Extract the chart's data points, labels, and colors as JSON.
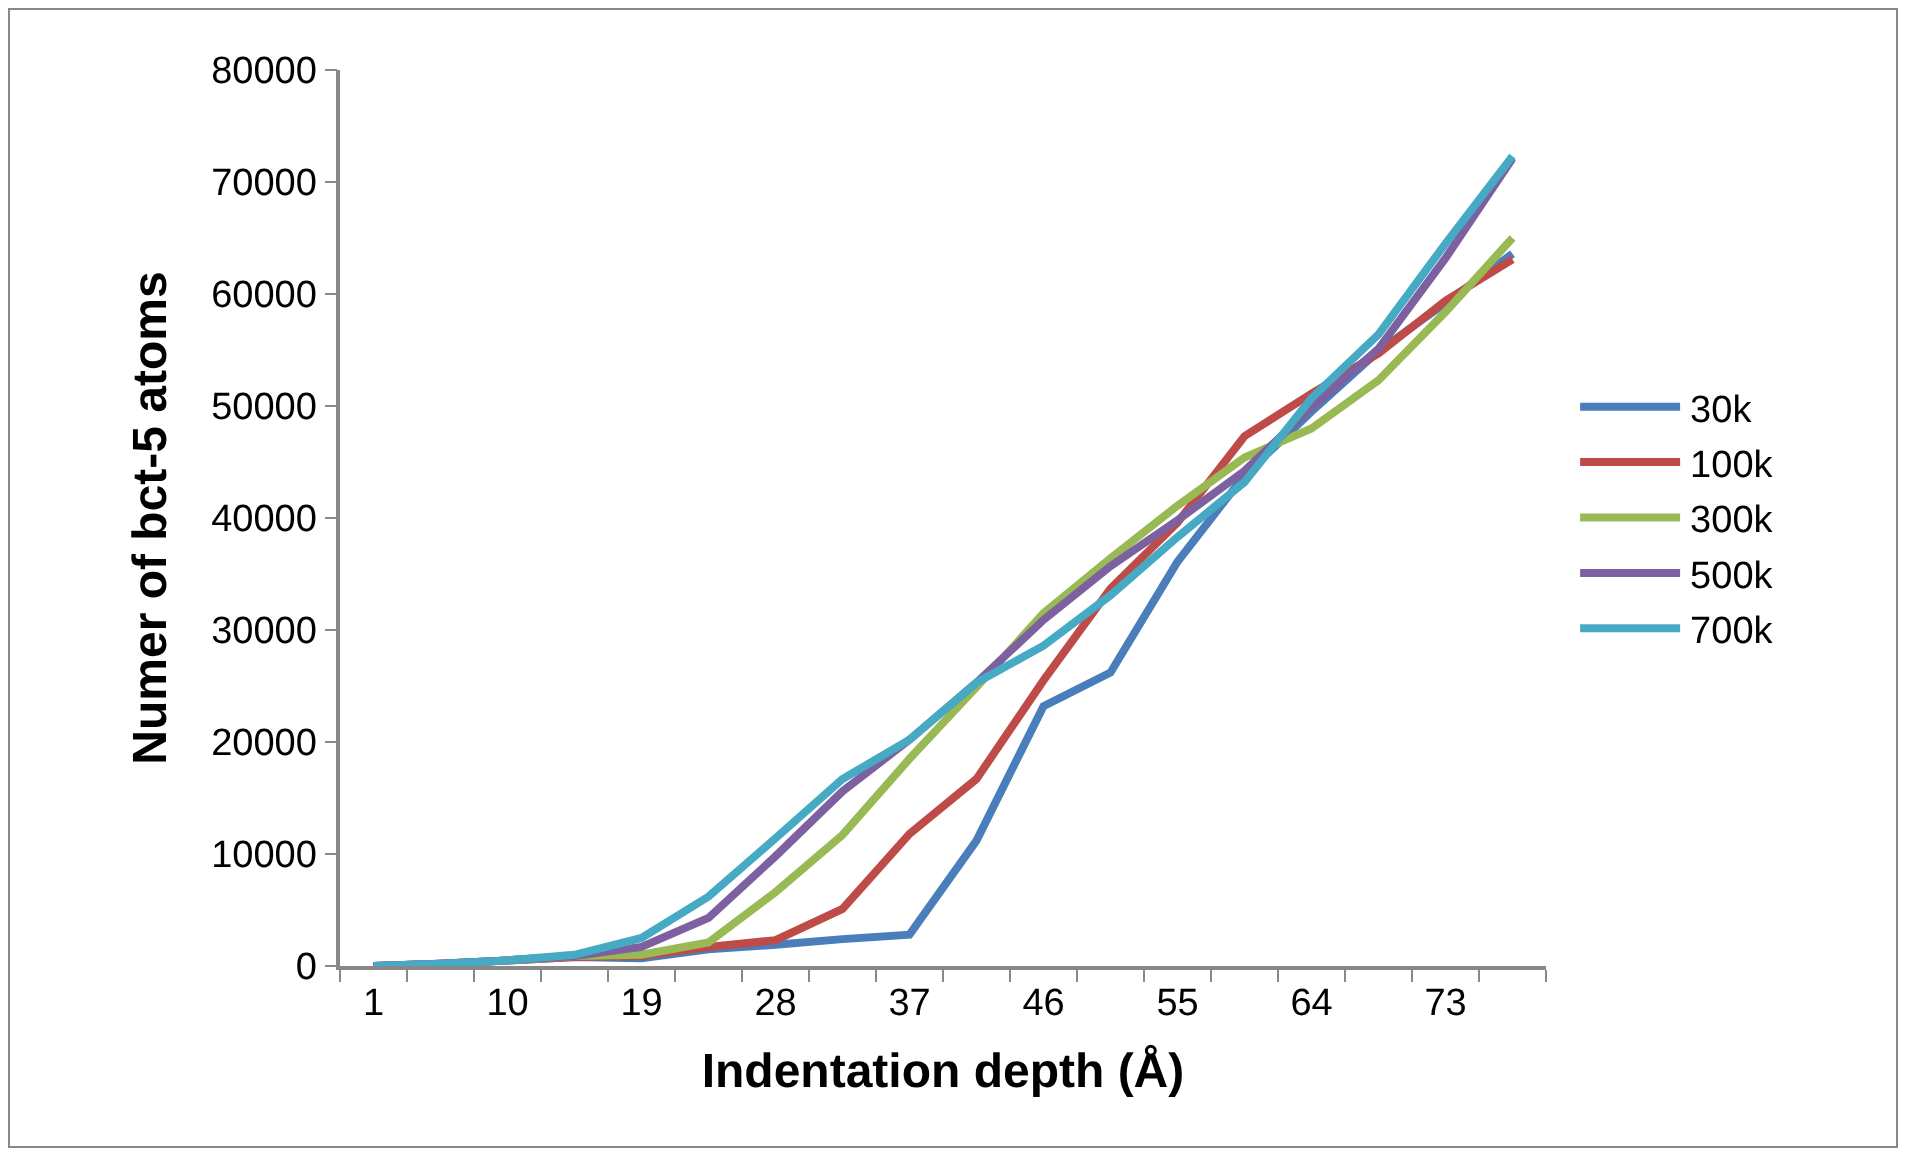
{
  "chart_data": {
    "type": "line",
    "xlabel": "Indentation depth (Å)",
    "ylabel": "Numer of bct-5 atoms",
    "categories": [
      "1",
      null,
      "10",
      null,
      "19",
      null,
      "28",
      null,
      "37",
      null,
      "46",
      null,
      "55",
      null,
      "64",
      null,
      "73",
      null
    ],
    "ylim": [
      0,
      80000
    ],
    "yticks": [
      0,
      10000,
      20000,
      30000,
      40000,
      50000,
      60000,
      70000,
      80000
    ],
    "grid": false,
    "legend": "right",
    "marker": "none",
    "line_style": "solid",
    "series": [
      {
        "name": "30k",
        "color": "#4a7ebb",
        "values": [
          0,
          200,
          500,
          800,
          700,
          1500,
          1900,
          2400,
          2800,
          11200,
          23200,
          26200,
          36100,
          43800,
          49500,
          54900,
          59200,
          63600
        ]
      },
      {
        "name": "100k",
        "color": "#be4b48",
        "values": [
          0,
          200,
          500,
          800,
          900,
          1700,
          2300,
          5100,
          11800,
          16700,
          25500,
          33700,
          39600,
          47300,
          51100,
          54700,
          59400,
          63100
        ]
      },
      {
        "name": "300k",
        "color": "#98b954",
        "values": [
          null,
          null,
          500,
          900,
          1000,
          2100,
          6600,
          11700,
          18500,
          24900,
          31500,
          36400,
          41100,
          45400,
          48000,
          52300,
          58400,
          65000
        ]
      },
      {
        "name": "500k",
        "color": "#7d60a0",
        "values": [
          0,
          200,
          500,
          900,
          1700,
          4300,
          9800,
          15600,
          20200,
          25300,
          30900,
          35700,
          39800,
          44200,
          49900,
          55100,
          63200,
          72100
        ]
      },
      {
        "name": "700k",
        "color": "#46aac5",
        "values": [
          0,
          200,
          500,
          1000,
          2500,
          6200,
          11400,
          16700,
          20200,
          25300,
          28600,
          33100,
          38300,
          43200,
          50700,
          56400,
          64500,
          72300
        ]
      }
    ]
  }
}
